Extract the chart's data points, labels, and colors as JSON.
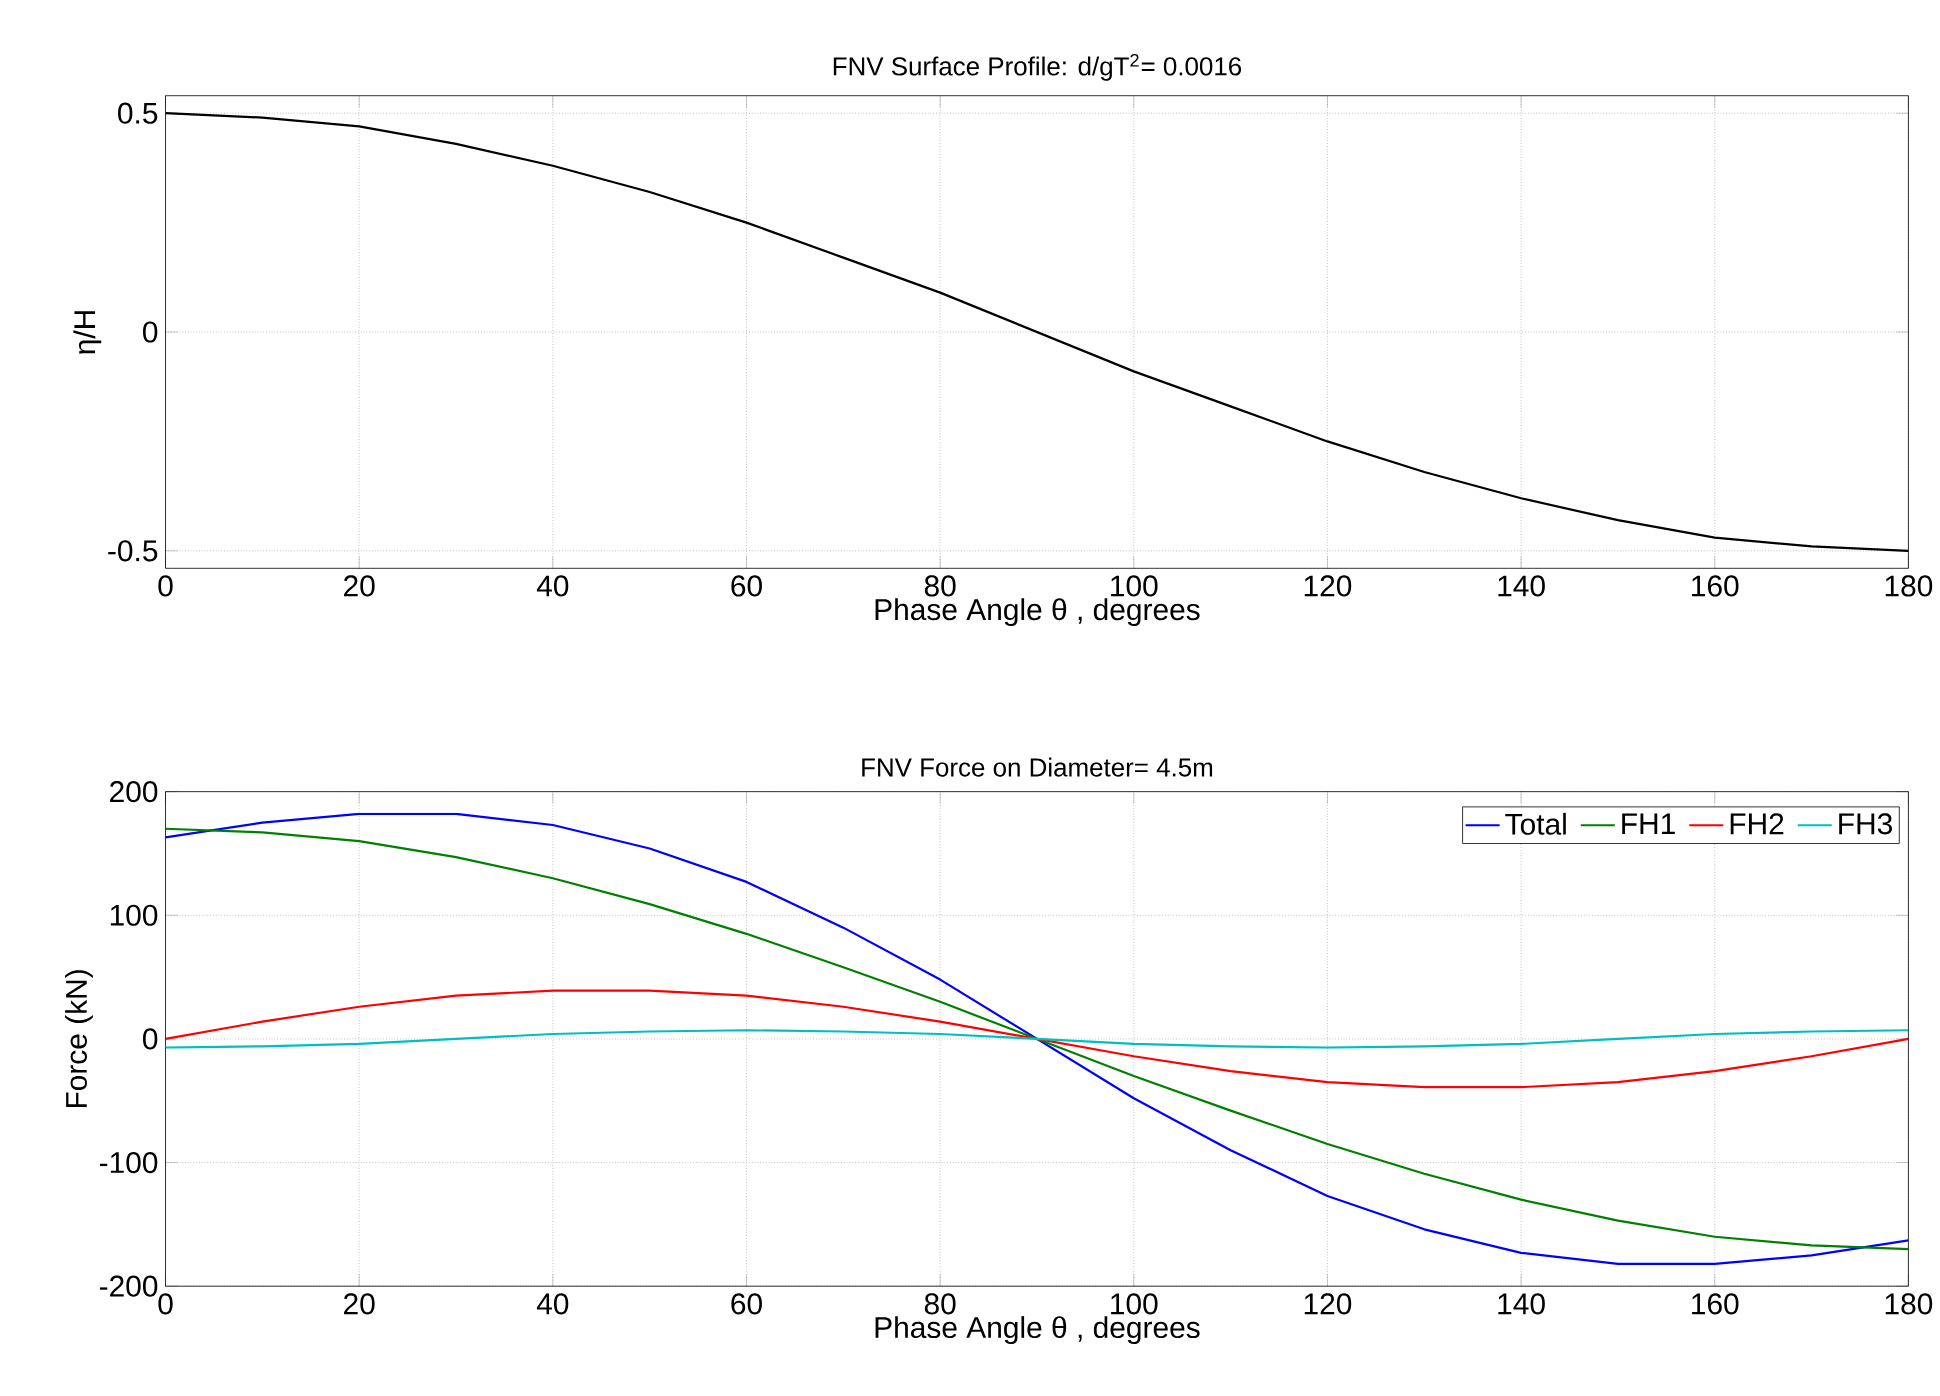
{
  "chart_data": [
    {
      "type": "line",
      "title": "FNV Surface Profile: d/gT$^{2}$= 0.0016",
      "xlabel": "Phase Angle θ , degrees",
      "ylabel": "η/H",
      "x": [
        0,
        10,
        20,
        30,
        40,
        50,
        60,
        70,
        80,
        90,
        100,
        110,
        120,
        130,
        140,
        150,
        160,
        170,
        180
      ],
      "series": [
        {
          "color": "#000000",
          "values": [
            0.5,
            0.49,
            0.47,
            0.43,
            0.38,
            0.32,
            0.25,
            0.17,
            0.09,
            0,
            -0.09,
            -0.17,
            -0.25,
            -0.32,
            -0.38,
            -0.43,
            -0.47,
            -0.49,
            -0.5
          ]
        }
      ],
      "xlim": [
        0,
        180
      ],
      "xticks": [
        0,
        20,
        40,
        60,
        80,
        100,
        120,
        140,
        160,
        180
      ],
      "ylim": [
        -0.54,
        0.54
      ],
      "yticks": [
        -0.5,
        0,
        0.5
      ],
      "grid": true,
      "line_style": "solid",
      "marker": "none"
    },
    {
      "type": "line",
      "title": "FNV Force on Diameter= 4.5m",
      "xlabel": "Phase Angle θ , degrees",
      "ylabel": "Force (kN)",
      "x": [
        0,
        10,
        20,
        30,
        40,
        50,
        60,
        70,
        80,
        90,
        100,
        110,
        120,
        130,
        140,
        150,
        160,
        170,
        180
      ],
      "series": [
        {
          "name": "Total",
          "color": "#0000ff",
          "values": [
            163,
            175,
            182,
            182,
            173,
            154,
            127,
            90,
            48,
            0,
            -48,
            -90,
            -127,
            -154,
            -173,
            -182,
            -182,
            -175,
            -163
          ]
        },
        {
          "name": "FH1",
          "color": "#008000",
          "values": [
            170,
            167,
            160,
            147,
            130,
            109,
            85,
            58,
            30,
            0,
            -30,
            -58,
            -85,
            -109,
            -130,
            -147,
            -160,
            -167,
            -170
          ]
        },
        {
          "name": "FH2",
          "color": "#ff0000",
          "values": [
            0,
            14,
            26,
            35,
            39,
            39,
            35,
            26,
            14,
            0,
            -14,
            -26,
            -35,
            -39,
            -39,
            -35,
            -26,
            -14,
            0
          ]
        },
        {
          "name": "FH3",
          "color": "#00bfbf",
          "values": [
            -7,
            -6,
            -4,
            0,
            4,
            6,
            7,
            6,
            4,
            0,
            -4,
            -6,
            -7,
            -6,
            -4,
            0,
            4,
            6,
            7
          ]
        }
      ],
      "xlim": [
        0,
        180
      ],
      "xticks": [
        0,
        20,
        40,
        60,
        80,
        100,
        120,
        140,
        160,
        180
      ],
      "ylim": [
        -200,
        200
      ],
      "yticks": [
        -200,
        -100,
        0,
        100,
        200
      ],
      "grid": true,
      "legend": "top right",
      "line_style": "solid",
      "marker": "none"
    }
  ]
}
